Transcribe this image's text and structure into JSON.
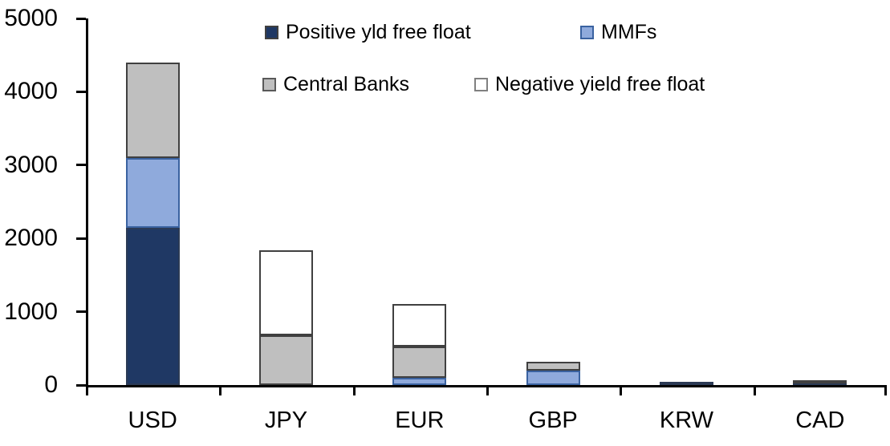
{
  "chart_data": {
    "type": "bar",
    "stacked": true,
    "title": "",
    "xlabel": "",
    "ylabel": "",
    "grid": false,
    "legend_position": "top",
    "ylim": [
      0,
      5000
    ],
    "y_ticks": [
      0,
      1000,
      2000,
      3000,
      4000,
      5000
    ],
    "categories": [
      "USD",
      "JPY",
      "EUR",
      "GBP",
      "KRW",
      "CAD"
    ],
    "series": [
      {
        "name": "Positive yld free float",
        "color": "#1F3864",
        "border": "#2b3a55",
        "swatch_border": "#404040",
        "values": [
          2150,
          0,
          0,
          0,
          40,
          25
        ]
      },
      {
        "name": "MMFs",
        "color": "#8FAADC",
        "border": "#3a62a0",
        "swatch_border": "#3a62a0",
        "values": [
          950,
          0,
          100,
          200,
          0,
          0
        ]
      },
      {
        "name": "Central Banks",
        "color": "#BFBFBF",
        "border": "#404040",
        "swatch_border": "#595959",
        "values": [
          1300,
          680,
          430,
          120,
          0,
          35
        ]
      },
      {
        "name": "Negative yield free float",
        "color": "#FFFFFF",
        "border": "#404040",
        "swatch_border": "#808080",
        "values": [
          0,
          1160,
          580,
          0,
          0,
          0
        ]
      }
    ],
    "axis_color": "#000000",
    "background_color": "#FFFFFF"
  }
}
